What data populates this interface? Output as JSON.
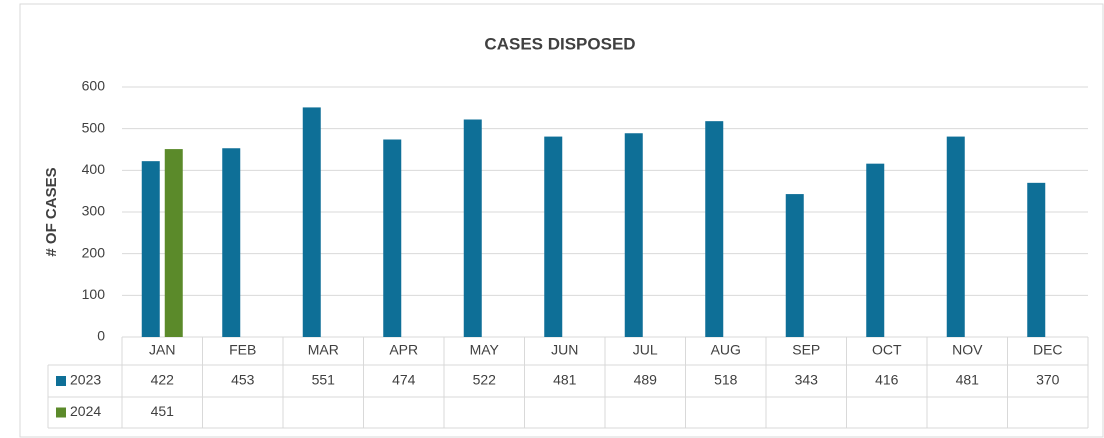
{
  "chart_data": {
    "type": "bar",
    "title": "CASES DISPOSED",
    "y_label": "# OF CASES",
    "categories": [
      "JAN",
      "FEB",
      "MAR",
      "APR",
      "MAY",
      "JUN",
      "JUL",
      "AUG",
      "SEP",
      "OCT",
      "NOV",
      "DEC"
    ],
    "series": [
      {
        "name": "2023",
        "color": "#0e6f97",
        "values": [
          422,
          453,
          551,
          474,
          522,
          481,
          489,
          518,
          343,
          416,
          481,
          370
        ]
      },
      {
        "name": "2024",
        "color": "#5b8a2a",
        "values": [
          451,
          null,
          null,
          null,
          null,
          null,
          null,
          null,
          null,
          null,
          null,
          null
        ]
      }
    ],
    "ylim": [
      0,
      600
    ],
    "yticks": [
      0,
      100,
      200,
      300,
      400,
      500,
      600
    ],
    "grid": true,
    "data_table": true
  }
}
